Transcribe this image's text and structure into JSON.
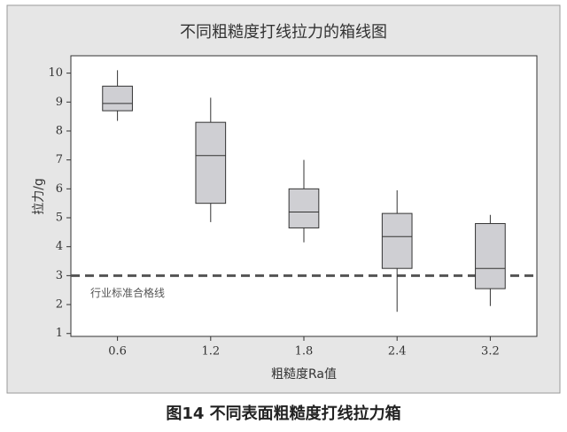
{
  "chart_data": {
    "type": "box",
    "title": "不同粗糙度打线拉力的箱线图",
    "x_label": "粗糙度Ra值",
    "y_label": "拉力/g",
    "caption": "图14 不同表面粗糙度打线拉力箱",
    "categories": [
      "0.6",
      "1.2",
      "1.8",
      "2.4",
      "3.2"
    ],
    "boxes": [
      {
        "whislo": 8.35,
        "q1": 8.7,
        "med": 8.95,
        "q3": 9.55,
        "whishi": 10.1
      },
      {
        "whislo": 4.85,
        "q1": 5.5,
        "med": 7.15,
        "q3": 8.3,
        "whishi": 9.15
      },
      {
        "whislo": 4.15,
        "q1": 4.65,
        "med": 5.2,
        "q3": 6.0,
        "whishi": 7.0
      },
      {
        "whislo": 1.75,
        "q1": 3.25,
        "med": 4.35,
        "q3": 5.15,
        "whishi": 5.95
      },
      {
        "whislo": 1.95,
        "q1": 2.55,
        "med": 3.25,
        "q3": 4.8,
        "whishi": 5.1
      }
    ],
    "color": "#cfcfd3",
    "reference_line": {
      "value": 3,
      "label": "行业标准合格线",
      "color": "#555555"
    },
    "ylim": [
      0.9,
      10.6
    ],
    "yticks": [
      1,
      2,
      3,
      4,
      5,
      6,
      7,
      8,
      9,
      10
    ]
  }
}
